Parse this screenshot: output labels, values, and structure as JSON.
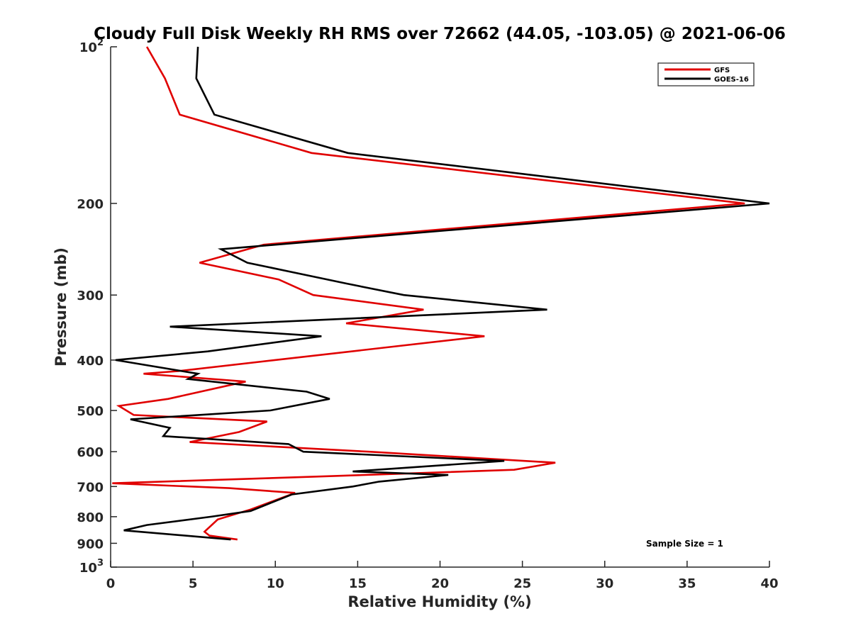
{
  "chart_data": {
    "type": "line",
    "title": "Cloudy Full Disk Weekly RH RMS over 72662 (44.05, -103.05) @ 2021-06-06",
    "xlabel": "Relative Humidity (%)",
    "ylabel": "Pressure (mb)",
    "xlim": [
      0,
      40
    ],
    "ylim": [
      100,
      1000
    ],
    "y_scale": "log",
    "y_reversed": true,
    "grid": false,
    "legend_position": "top-right",
    "x_ticks": [
      0,
      5,
      10,
      15,
      20,
      25,
      30,
      35,
      40
    ],
    "x_tick_labels": [
      "0",
      "5",
      "10",
      "15",
      "20",
      "25",
      "30",
      "35",
      "40"
    ],
    "y_ticks": [
      100,
      200,
      300,
      400,
      500,
      600,
      700,
      800,
      900,
      1000
    ],
    "y_tick_labels": [
      {
        "base": "10",
        "exp": "2"
      },
      {
        "base": "200",
        "exp": ""
      },
      {
        "base": "300",
        "exp": ""
      },
      {
        "base": "400",
        "exp": ""
      },
      {
        "base": "500",
        "exp": ""
      },
      {
        "base": "600",
        "exp": ""
      },
      {
        "base": "700",
        "exp": ""
      },
      {
        "base": "800",
        "exp": ""
      },
      {
        "base": "900",
        "exp": ""
      },
      {
        "base": "10",
        "exp": "3"
      }
    ],
    "annotation": "Sample Size = 1",
    "series": [
      {
        "name": "GFS",
        "color": "#e00000",
        "points": [
          [
            2.2,
            100
          ],
          [
            3.3,
            115
          ],
          [
            4.2,
            135
          ],
          [
            12.2,
            160
          ],
          [
            38.5,
            200
          ],
          [
            9.3,
            240
          ],
          [
            5.4,
            260
          ],
          [
            10.2,
            280
          ],
          [
            12.3,
            300
          ],
          [
            19.0,
            320
          ],
          [
            14.3,
            340
          ],
          [
            22.7,
            360
          ],
          [
            4.1,
            420
          ],
          [
            2.0,
            425
          ],
          [
            8.2,
            440
          ],
          [
            3.5,
            475
          ],
          [
            0.5,
            490
          ],
          [
            1.4,
            510
          ],
          [
            9.5,
            525
          ],
          [
            7.8,
            550
          ],
          [
            4.8,
            575
          ],
          [
            15.7,
            600
          ],
          [
            27.0,
            630
          ],
          [
            24.5,
            650
          ],
          [
            12.5,
            670
          ],
          [
            0.1,
            690
          ],
          [
            7.2,
            705
          ],
          [
            11.2,
            720
          ],
          [
            8.5,
            775
          ],
          [
            6.5,
            810
          ],
          [
            5.7,
            855
          ],
          [
            6.0,
            870
          ],
          [
            7.7,
            885
          ]
        ]
      },
      {
        "name": "GOES-16",
        "color": "#000000",
        "points": [
          [
            5.3,
            100
          ],
          [
            5.2,
            115
          ],
          [
            6.3,
            135
          ],
          [
            14.4,
            160
          ],
          [
            40.0,
            200
          ],
          [
            6.7,
            245
          ],
          [
            8.3,
            260
          ],
          [
            14.3,
            285
          ],
          [
            17.8,
            300
          ],
          [
            26.5,
            320
          ],
          [
            3.6,
            345
          ],
          [
            12.8,
            360
          ],
          [
            5.9,
            385
          ],
          [
            0.3,
            400
          ],
          [
            5.3,
            425
          ],
          [
            4.7,
            435
          ],
          [
            11.9,
            460
          ],
          [
            13.3,
            475
          ],
          [
            9.7,
            500
          ],
          [
            1.2,
            520
          ],
          [
            3.6,
            540
          ],
          [
            3.2,
            560
          ],
          [
            10.8,
            580
          ],
          [
            11.7,
            600
          ],
          [
            23.9,
            625
          ],
          [
            14.7,
            655
          ],
          [
            20.5,
            665
          ],
          [
            16.3,
            685
          ],
          [
            14.7,
            700
          ],
          [
            11.0,
            725
          ],
          [
            8.5,
            780
          ],
          [
            6.1,
            800
          ],
          [
            2.2,
            830
          ],
          [
            0.8,
            850
          ],
          [
            7.3,
            885
          ]
        ]
      }
    ]
  }
}
